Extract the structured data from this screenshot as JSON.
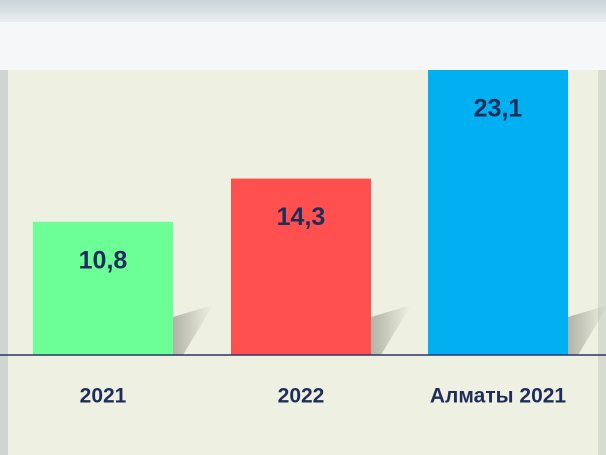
{
  "chart_data": {
    "type": "bar",
    "categories": [
      "2021",
      "2022",
      "Алматы 2021"
    ],
    "values": [
      10.8,
      14.3,
      23.1
    ],
    "value_labels": [
      "10,8",
      "14,3",
      "23,1"
    ],
    "colors": [
      "#6bff96",
      "#ff5050",
      "#00b0f0"
    ]
  }
}
